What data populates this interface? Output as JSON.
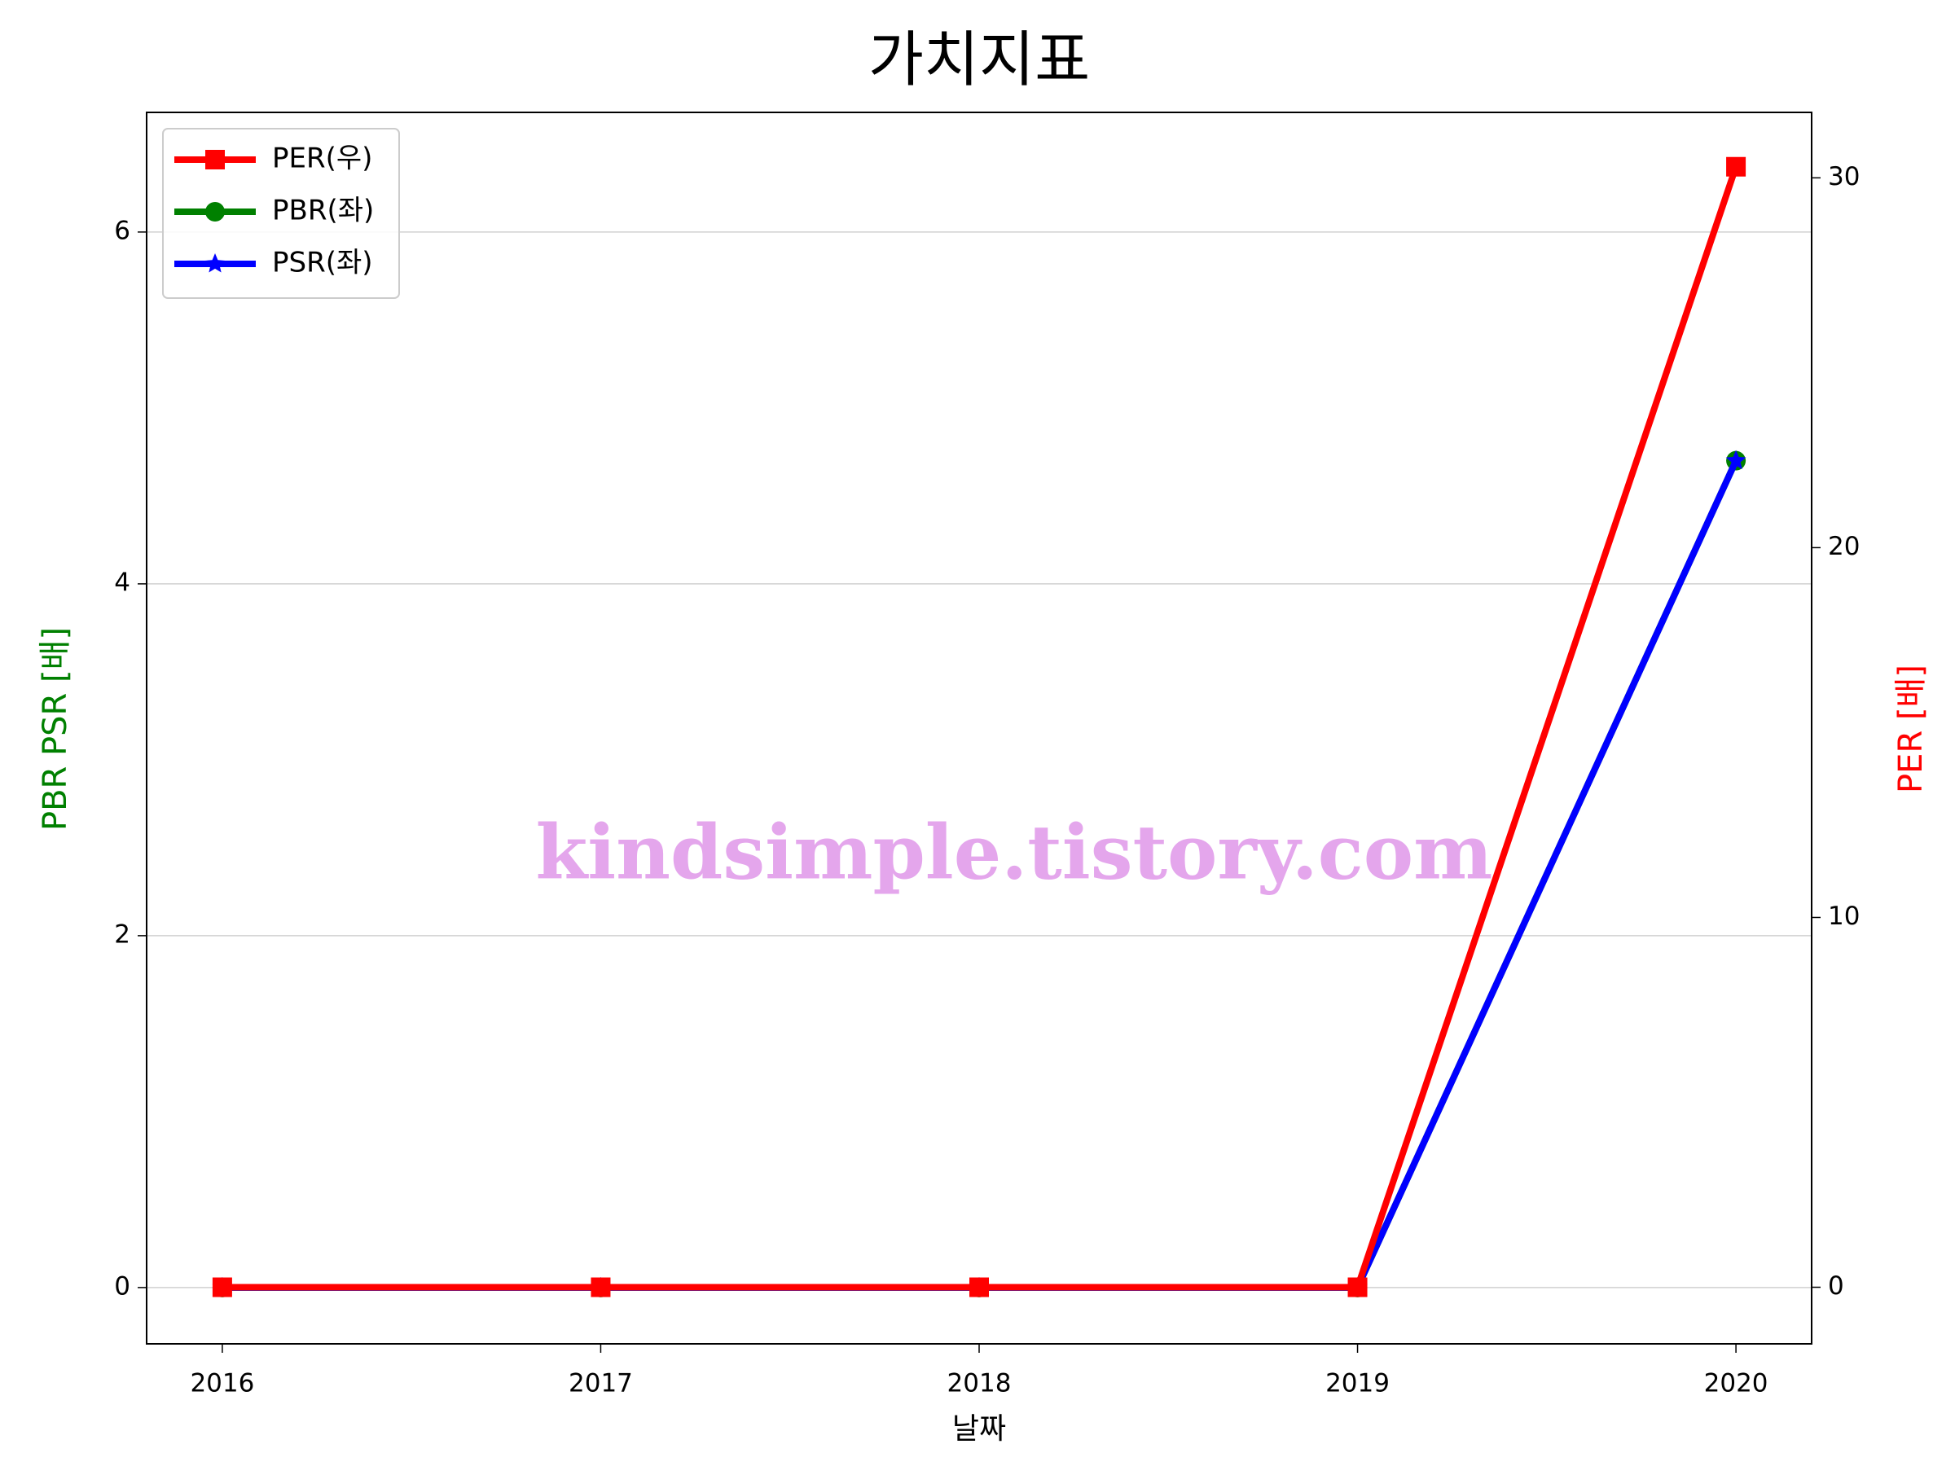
{
  "chart_data": {
    "type": "line",
    "title": "가치지표",
    "x_label": "날짜",
    "y_label": "PBR PSR [배]",
    "y2_label": "PER [배]",
    "annotation": "kindsimple.tistory.com",
    "x": [
      2016,
      2017,
      2018,
      2019,
      2020
    ],
    "xlim": [
      2015.8,
      2020.2
    ],
    "xticks": [
      2016,
      2017,
      2018,
      2019,
      2020
    ],
    "ylim": [
      -0.32,
      6.68
    ],
    "yticks": [
      0,
      2,
      4,
      6
    ],
    "y2lim": [
      -1.53,
      31.77
    ],
    "y2ticks": [
      0,
      10,
      20,
      30
    ],
    "grid": true,
    "legend": "upper left",
    "series": [
      {
        "name": "PER(우)",
        "color": "#ff0000",
        "marker": "square",
        "axis": "y2",
        "values": [
          0,
          0,
          0,
          0,
          30.3
        ]
      },
      {
        "name": "PBR(좌)",
        "color": "#008000",
        "marker": "circle",
        "values": [
          0,
          0,
          0,
          0,
          4.7
        ]
      },
      {
        "name": "PSR(좌)",
        "color": "#0000ff",
        "marker": "star",
        "values": [
          0,
          0,
          0,
          0,
          4.7
        ]
      }
    ]
  }
}
